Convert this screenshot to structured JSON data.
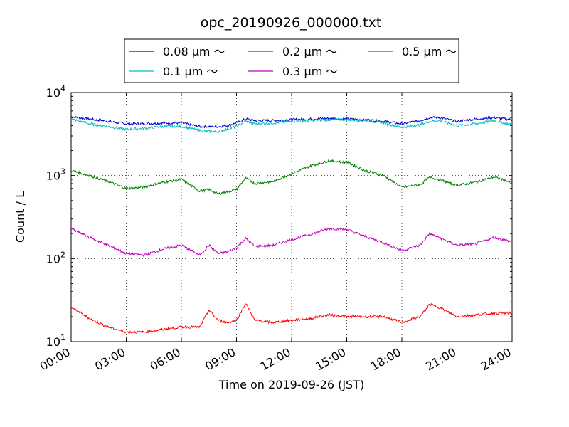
{
  "chart_data": {
    "type": "line",
    "title": "opc_20190926_000000.txt",
    "xlabel": "Time on 2019-09-26 (JST)",
    "ylabel": "Count / L",
    "yscale": "log",
    "ylim": [
      10,
      10000
    ],
    "xlim": [
      0,
      24
    ],
    "x_tick_labels": [
      "00:00",
      "03:00",
      "06:00",
      "09:00",
      "12:00",
      "15:00",
      "18:00",
      "21:00",
      "24:00"
    ],
    "y_tick_labels": [
      {
        "base": "10",
        "exp": "1"
      },
      {
        "base": "10",
        "exp": "2"
      },
      {
        "base": "10",
        "exp": "3"
      },
      {
        "base": "10",
        "exp": "4"
      }
    ],
    "grid": true,
    "legend_position": "top-center",
    "x": [
      0,
      1,
      2,
      3,
      4,
      5,
      6,
      7,
      7.5,
      8,
      8.5,
      9,
      9.5,
      10,
      11,
      12,
      13,
      14,
      15,
      16,
      17,
      18,
      19,
      19.5,
      20,
      21,
      22,
      23,
      24
    ],
    "series": [
      {
        "name": "0.08 μm ～",
        "color": "#0000cc",
        "values": [
          5100,
          4800,
          4500,
          4200,
          4200,
          4300,
          4300,
          3900,
          3900,
          3900,
          4000,
          4300,
          4800,
          4600,
          4600,
          4700,
          4800,
          4900,
          4800,
          4700,
          4500,
          4200,
          4600,
          5000,
          5000,
          4500,
          4800,
          5000,
          4700
        ]
      },
      {
        "name": "0.1 μm ～",
        "color": "#00bfbf",
        "values": [
          4800,
          4200,
          3900,
          3600,
          3700,
          3900,
          3900,
          3500,
          3400,
          3400,
          3600,
          3900,
          4500,
          4200,
          4300,
          4500,
          4600,
          4700,
          4700,
          4600,
          4300,
          3800,
          4100,
          4500,
          4600,
          4000,
          4200,
          4600,
          4100
        ]
      },
      {
        "name": "0.2 μm ～",
        "color": "#007f00",
        "values": [
          1150,
          1000,
          850,
          700,
          730,
          830,
          900,
          650,
          680,
          600,
          640,
          680,
          930,
          800,
          850,
          1050,
          1300,
          1500,
          1450,
          1150,
          1000,
          720,
          780,
          950,
          900,
          760,
          830,
          960,
          820
        ]
      },
      {
        "name": "0.3 μm ～",
        "color": "#bf00bf",
        "values": [
          230,
          180,
          145,
          115,
          110,
          130,
          145,
          110,
          145,
          115,
          120,
          135,
          175,
          140,
          145,
          170,
          195,
          230,
          225,
          185,
          155,
          125,
          145,
          200,
          180,
          145,
          150,
          180,
          160
        ]
      },
      {
        "name": "0.5 μm ～",
        "color": "#ff0000",
        "values": [
          26,
          19,
          15,
          13,
          13,
          14,
          15,
          15,
          24,
          18,
          17,
          18,
          29,
          18,
          17,
          18,
          19,
          21,
          20,
          20,
          20,
          17,
          20,
          28,
          26,
          20,
          21,
          22,
          22
        ]
      }
    ]
  }
}
